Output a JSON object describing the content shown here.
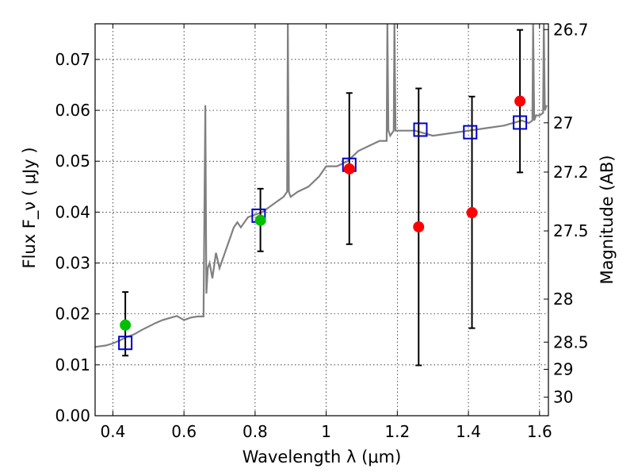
{
  "chart_data": {
    "type": "scatter",
    "xlabel": "Wavelength  λ (μm)",
    "ylabel_left": "Flux  F_ν  ( μJy )",
    "ylabel_right": "Magnitude (AB)",
    "xlim": [
      0.35,
      1.625
    ],
    "ylim": [
      0.0,
      0.077
    ],
    "grid": true,
    "x_ticks": [
      0.4,
      0.6,
      0.8,
      1.0,
      1.2,
      1.4,
      1.6
    ],
    "x_tick_labels": [
      "0.4",
      "0.6",
      "0.8",
      "1",
      "1.2",
      "1.4",
      "1.6"
    ],
    "y_ticks": [
      0.0,
      0.01,
      0.02,
      0.03,
      0.04,
      0.05,
      0.06,
      0.07
    ],
    "y_tick_labels": [
      "0.00",
      "0.01",
      "0.02",
      "0.03",
      "0.04",
      "0.05",
      "0.06",
      "0.07"
    ],
    "right_ticks": [
      {
        "label": "26.7",
        "mag": 26.7
      },
      {
        "label": "27",
        "mag": 27.0
      },
      {
        "label": "27.2",
        "mag": 27.2
      },
      {
        "label": "27.5",
        "mag": 27.5
      },
      {
        "label": "28",
        "mag": 28.0
      },
      {
        "label": "28.5",
        "mag": 28.5
      },
      {
        "label": "29",
        "mag": 29.0
      },
      {
        "label": "30",
        "mag": 30.0
      }
    ],
    "model_spectrum": {
      "color": "#808080",
      "x": [
        0.35,
        0.36,
        0.38,
        0.4,
        0.42,
        0.44,
        0.46,
        0.48,
        0.5,
        0.52,
        0.54,
        0.56,
        0.58,
        0.6,
        0.62,
        0.64,
        0.655,
        0.66,
        0.663,
        0.667,
        0.672,
        0.68,
        0.69,
        0.7,
        0.71,
        0.72,
        0.73,
        0.74,
        0.75,
        0.76,
        0.78,
        0.8,
        0.82,
        0.84,
        0.86,
        0.88,
        0.89,
        0.892,
        0.895,
        0.9,
        0.92,
        0.95,
        0.98,
        1.0,
        1.03,
        1.06,
        1.09,
        1.12,
        1.15,
        1.17,
        1.172,
        1.175,
        1.18,
        1.19,
        1.192,
        1.195,
        1.2,
        1.25,
        1.3,
        1.35,
        1.4,
        1.45,
        1.5,
        1.55,
        1.57,
        1.58,
        1.582,
        1.585,
        1.59,
        1.6,
        1.61,
        1.612,
        1.615,
        1.62
      ],
      "y": [
        0.0135,
        0.0136,
        0.0138,
        0.0142,
        0.0148,
        0.0155,
        0.016,
        0.0168,
        0.0175,
        0.0182,
        0.0188,
        0.0192,
        0.0196,
        0.0188,
        0.0193,
        0.0195,
        0.0195,
        0.061,
        0.024,
        0.029,
        0.03,
        0.027,
        0.032,
        0.029,
        0.031,
        0.033,
        0.035,
        0.037,
        0.038,
        0.037,
        0.039,
        0.0395,
        0.04,
        0.041,
        0.042,
        0.043,
        0.044,
        0.077,
        0.044,
        0.043,
        0.044,
        0.045,
        0.047,
        0.049,
        0.049,
        0.05,
        0.052,
        0.053,
        0.054,
        0.054,
        0.077,
        0.056,
        0.055,
        0.056,
        0.077,
        0.056,
        0.056,
        0.056,
        0.055,
        0.0555,
        0.056,
        0.0565,
        0.057,
        0.058,
        0.0575,
        0.058,
        0.077,
        0.058,
        0.059,
        0.059,
        0.0595,
        0.077,
        0.06,
        0.061
      ]
    },
    "model_photometry": {
      "marker": "open-square",
      "color": "#0000cc",
      "points": [
        {
          "x": 0.435,
          "y": 0.0143
        },
        {
          "x": 0.81,
          "y": 0.0393
        },
        {
          "x": 1.065,
          "y": 0.0493
        },
        {
          "x": 1.265,
          "y": 0.0562
        },
        {
          "x": 1.405,
          "y": 0.0557
        },
        {
          "x": 1.545,
          "y": 0.0576
        }
      ]
    },
    "observed_detections": {
      "marker": "filled-circle",
      "color": "#00c000",
      "points": [
        {
          "x": 0.435,
          "y": 0.0178,
          "err_low": 0.0118,
          "err_high": 0.0243
        },
        {
          "x": 0.815,
          "y": 0.0384,
          "err_low": 0.0323,
          "err_high": 0.0446
        }
      ]
    },
    "observed_limits": {
      "marker": "filled-circle",
      "color": "#ff0000",
      "points": [
        {
          "x": 1.065,
          "y": 0.0485,
          "err_low": 0.0337,
          "err_high": 0.0634
        },
        {
          "x": 1.26,
          "y": 0.0371,
          "err_low": 0.0099,
          "err_high": 0.0643
        },
        {
          "x": 1.41,
          "y": 0.0399,
          "err_low": 0.0172,
          "err_high": 0.0627
        },
        {
          "x": 1.545,
          "y": 0.0618,
          "err_low": 0.0478,
          "err_high": 0.0758
        }
      ]
    }
  }
}
